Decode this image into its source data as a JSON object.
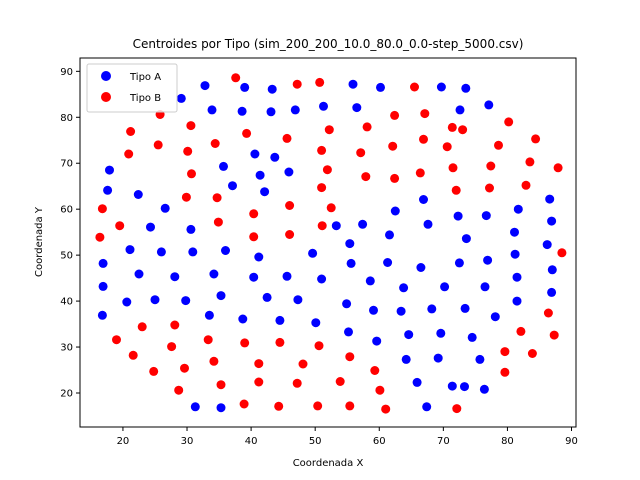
{
  "chart_data": {
    "type": "scatter",
    "title": "Centroides por Tipo (sim_200_200_10.0_80.0_0.0-step_5000.csv)",
    "xlabel": "Coordenada X",
    "ylabel": "Coordenada Y",
    "xlim": [
      13.3,
      90.7
    ],
    "ylim": [
      12.6,
      92.9
    ],
    "xticks": [
      20,
      30,
      40,
      50,
      60,
      70,
      80,
      90
    ],
    "yticks": [
      20,
      30,
      40,
      50,
      60,
      70,
      80,
      90
    ],
    "grid": false,
    "legend_position": "top-left",
    "series": [
      {
        "name": "Tipo A",
        "color": "#0000ff",
        "points": [
          [
            31.3,
            17.0
          ],
          [
            35.3,
            16.8
          ],
          [
            73.3,
            21.4
          ],
          [
            75.7,
            27.3
          ],
          [
            71.4,
            21.5
          ],
          [
            76.4,
            20.8
          ],
          [
            16.8,
            36.9
          ],
          [
            16.9,
            43.2
          ],
          [
            16.9,
            48.2
          ],
          [
            17.6,
            64.1
          ],
          [
            17.9,
            68.5
          ],
          [
            20.6,
            39.8
          ],
          [
            21.1,
            51.2
          ],
          [
            22.4,
            63.2
          ],
          [
            22.5,
            45.9
          ],
          [
            24.3,
            56.1
          ],
          [
            25.0,
            40.3
          ],
          [
            26.0,
            50.7
          ],
          [
            26.6,
            60.2
          ],
          [
            28.1,
            45.3
          ],
          [
            29.1,
            84.1
          ],
          [
            29.8,
            40.1
          ],
          [
            30.6,
            55.6
          ],
          [
            30.9,
            50.7
          ],
          [
            32.8,
            86.9
          ],
          [
            33.5,
            36.9
          ],
          [
            33.9,
            81.6
          ],
          [
            34.2,
            45.9
          ],
          [
            35.3,
            41.2
          ],
          [
            35.7,
            69.3
          ],
          [
            36.0,
            51.0
          ],
          [
            37.1,
            65.1
          ],
          [
            38.6,
            81.3
          ],
          [
            39.0,
            86.5
          ],
          [
            38.7,
            36.1
          ],
          [
            40.4,
            45.2
          ],
          [
            40.6,
            72.0
          ],
          [
            41.2,
            49.6
          ],
          [
            41.4,
            67.4
          ],
          [
            42.1,
            63.8
          ],
          [
            42.5,
            40.8
          ],
          [
            43.1,
            81.2
          ],
          [
            43.3,
            86.1
          ],
          [
            43.7,
            71.3
          ],
          [
            44.5,
            35.8
          ],
          [
            45.6,
            45.4
          ],
          [
            45.9,
            68.1
          ],
          [
            46.9,
            81.6
          ],
          [
            47.3,
            40.3
          ],
          [
            49.6,
            50.4
          ],
          [
            50.1,
            35.3
          ],
          [
            51.0,
            44.8
          ],
          [
            51.3,
            82.4
          ],
          [
            53.3,
            56.4
          ],
          [
            54.9,
            39.4
          ],
          [
            55.2,
            33.3
          ],
          [
            55.4,
            52.5
          ],
          [
            55.6,
            48.2
          ],
          [
            55.9,
            87.2
          ],
          [
            56.5,
            82.1
          ],
          [
            57.4,
            56.7
          ],
          [
            58.6,
            44.4
          ],
          [
            59.1,
            38.0
          ],
          [
            59.6,
            31.3
          ],
          [
            60.2,
            86.5
          ],
          [
            61.3,
            48.4
          ],
          [
            61.6,
            54.4
          ],
          [
            62.5,
            59.6
          ],
          [
            63.4,
            37.8
          ],
          [
            63.8,
            42.9
          ],
          [
            64.2,
            27.3
          ],
          [
            64.6,
            32.7
          ],
          [
            65.9,
            22.3
          ],
          [
            66.5,
            47.3
          ],
          [
            66.9,
            62.1
          ],
          [
            67.4,
            17.0
          ],
          [
            67.6,
            56.7
          ],
          [
            68.2,
            38.3
          ],
          [
            69.2,
            27.6
          ],
          [
            69.6,
            33.0
          ],
          [
            69.7,
            86.6
          ],
          [
            70.2,
            43.1
          ],
          [
            72.3,
            58.5
          ],
          [
            72.5,
            48.3
          ],
          [
            72.6,
            81.6
          ],
          [
            73.4,
            38.4
          ],
          [
            73.5,
            86.3
          ],
          [
            73.6,
            53.6
          ],
          [
            74.5,
            32.1
          ],
          [
            76.5,
            43.1
          ],
          [
            76.7,
            58.6
          ],
          [
            76.9,
            48.9
          ],
          [
            77.1,
            82.7
          ],
          [
            78.1,
            36.6
          ],
          [
            81.1,
            55.0
          ],
          [
            81.2,
            50.2
          ],
          [
            81.5,
            45.2
          ],
          [
            81.7,
            60.0
          ],
          [
            81.5,
            40.0
          ],
          [
            86.2,
            52.3
          ],
          [
            86.6,
            62.2
          ],
          [
            86.9,
            57.4
          ],
          [
            87.0,
            46.8
          ],
          [
            86.9,
            41.9
          ]
        ]
      },
      {
        "name": "Tipo B",
        "color": "#ff0000",
        "points": [
          [
            16.4,
            53.9
          ],
          [
            16.8,
            60.1
          ],
          [
            19.0,
            31.6
          ],
          [
            19.5,
            56.4
          ],
          [
            20.9,
            72.0
          ],
          [
            21.2,
            76.9
          ],
          [
            21.6,
            28.2
          ],
          [
            23.0,
            34.4
          ],
          [
            24.8,
            24.7
          ],
          [
            25.5,
            74.0
          ],
          [
            25.8,
            80.6
          ],
          [
            27.6,
            30.1
          ],
          [
            28.1,
            34.8
          ],
          [
            28.7,
            20.6
          ],
          [
            29.6,
            25.4
          ],
          [
            29.9,
            62.6
          ],
          [
            30.1,
            72.6
          ],
          [
            30.6,
            78.2
          ],
          [
            30.7,
            67.7
          ],
          [
            33.3,
            31.6
          ],
          [
            34.2,
            26.9
          ],
          [
            34.4,
            74.3
          ],
          [
            34.7,
            62.5
          ],
          [
            34.9,
            57.2
          ],
          [
            35.3,
            21.8
          ],
          [
            37.6,
            88.6
          ],
          [
            38.9,
            17.6
          ],
          [
            39.0,
            30.9
          ],
          [
            39.3,
            76.5
          ],
          [
            40.4,
            54.0
          ],
          [
            40.4,
            59.0
          ],
          [
            41.2,
            26.4
          ],
          [
            41.2,
            22.4
          ],
          [
            44.3,
            17.1
          ],
          [
            44.5,
            31.0
          ],
          [
            45.6,
            75.4
          ],
          [
            46.0,
            54.5
          ],
          [
            46.0,
            60.8
          ],
          [
            47.2,
            87.2
          ],
          [
            47.2,
            22.1
          ],
          [
            48.1,
            26.3
          ],
          [
            50.4,
            17.2
          ],
          [
            50.6,
            30.3
          ],
          [
            50.7,
            87.6
          ],
          [
            51.0,
            72.8
          ],
          [
            51.0,
            64.7
          ],
          [
            51.1,
            56.4
          ],
          [
            51.9,
            68.6
          ],
          [
            52.2,
            77.3
          ],
          [
            52.5,
            60.3
          ],
          [
            53.9,
            22.5
          ],
          [
            55.4,
            17.2
          ],
          [
            55.4,
            27.9
          ],
          [
            57.1,
            72.3
          ],
          [
            57.9,
            67.1
          ],
          [
            58.1,
            77.9
          ],
          [
            59.3,
            24.9
          ],
          [
            60.1,
            20.6
          ],
          [
            61.0,
            16.5
          ],
          [
            62.1,
            73.7
          ],
          [
            62.4,
            80.4
          ],
          [
            62.4,
            66.7
          ],
          [
            65.5,
            86.6
          ],
          [
            66.4,
            67.9
          ],
          [
            66.9,
            75.2
          ],
          [
            67.1,
            80.8
          ],
          [
            70.6,
            73.6
          ],
          [
            71.4,
            77.8
          ],
          [
            71.5,
            69.0
          ],
          [
            72.0,
            64.1
          ],
          [
            72.1,
            16.6
          ],
          [
            73.0,
            77.3
          ],
          [
            77.2,
            64.6
          ],
          [
            77.4,
            69.4
          ],
          [
            78.6,
            73.9
          ],
          [
            79.6,
            29.0
          ],
          [
            79.6,
            24.5
          ],
          [
            80.2,
            79.0
          ],
          [
            82.1,
            33.4
          ],
          [
            82.9,
            65.2
          ],
          [
            83.5,
            70.3
          ],
          [
            83.9,
            28.6
          ],
          [
            84.4,
            75.3
          ],
          [
            86.4,
            37.4
          ],
          [
            87.3,
            32.6
          ],
          [
            87.9,
            69.0
          ],
          [
            88.5,
            50.5
          ]
        ]
      }
    ]
  }
}
